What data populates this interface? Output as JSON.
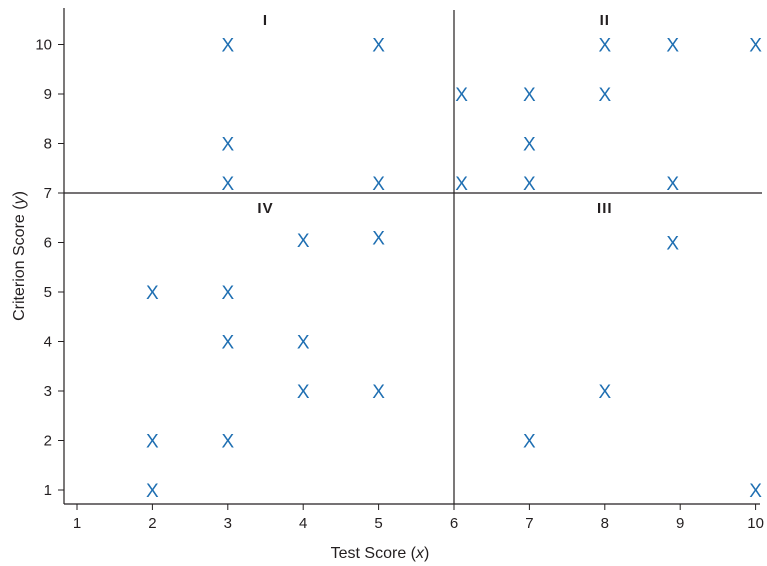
{
  "chart_data": {
    "type": "scatter",
    "title": "",
    "xlabel": "Test Score",
    "xlabel_var": "x",
    "ylabel": "Criterion Score",
    "ylabel_var": "y",
    "xlim": [
      1,
      10
    ],
    "ylim": [
      1,
      10
    ],
    "x_ticks": [
      "1",
      "2",
      "3",
      "4",
      "5",
      "6",
      "7",
      "8",
      "9",
      "10"
    ],
    "y_ticks": [
      "1",
      "2",
      "3",
      "4",
      "5",
      "6",
      "7",
      "8",
      "9",
      "10"
    ],
    "grid": false,
    "cutoffs": {
      "x": 6,
      "y": 7
    },
    "marker": "X",
    "marker_color": "#1f6fb2",
    "quadrants": [
      {
        "label": "I",
        "x": 3.5,
        "y": 10.5
      },
      {
        "label": "II",
        "x": 8.0,
        "y": 10.5
      },
      {
        "label": "IV",
        "x": 3.5,
        "y": 6.7
      },
      {
        "label": "III",
        "x": 8.0,
        "y": 6.7
      }
    ],
    "points": [
      {
        "x": 3,
        "y": 10
      },
      {
        "x": 5,
        "y": 10
      },
      {
        "x": 3,
        "y": 8
      },
      {
        "x": 3,
        "y": 7.2
      },
      {
        "x": 5,
        "y": 7.2
      },
      {
        "x": 6.1,
        "y": 9
      },
      {
        "x": 7,
        "y": 9
      },
      {
        "x": 8,
        "y": 9
      },
      {
        "x": 8,
        "y": 10
      },
      {
        "x": 8.9,
        "y": 10
      },
      {
        "x": 10,
        "y": 10
      },
      {
        "x": 7,
        "y": 8
      },
      {
        "x": 6.1,
        "y": 7.2
      },
      {
        "x": 7,
        "y": 7.2
      },
      {
        "x": 8.9,
        "y": 7.2
      },
      {
        "x": 4,
        "y": 6.05
      },
      {
        "x": 5,
        "y": 6.1
      },
      {
        "x": 2,
        "y": 5
      },
      {
        "x": 3,
        "y": 5
      },
      {
        "x": 3,
        "y": 4
      },
      {
        "x": 4,
        "y": 4
      },
      {
        "x": 4,
        "y": 3
      },
      {
        "x": 5,
        "y": 3
      },
      {
        "x": 2,
        "y": 2
      },
      {
        "x": 3,
        "y": 2
      },
      {
        "x": 2,
        "y": 1
      },
      {
        "x": 8.9,
        "y": 6
      },
      {
        "x": 8,
        "y": 3
      },
      {
        "x": 7,
        "y": 2
      },
      {
        "x": 10,
        "y": 1
      }
    ]
  }
}
